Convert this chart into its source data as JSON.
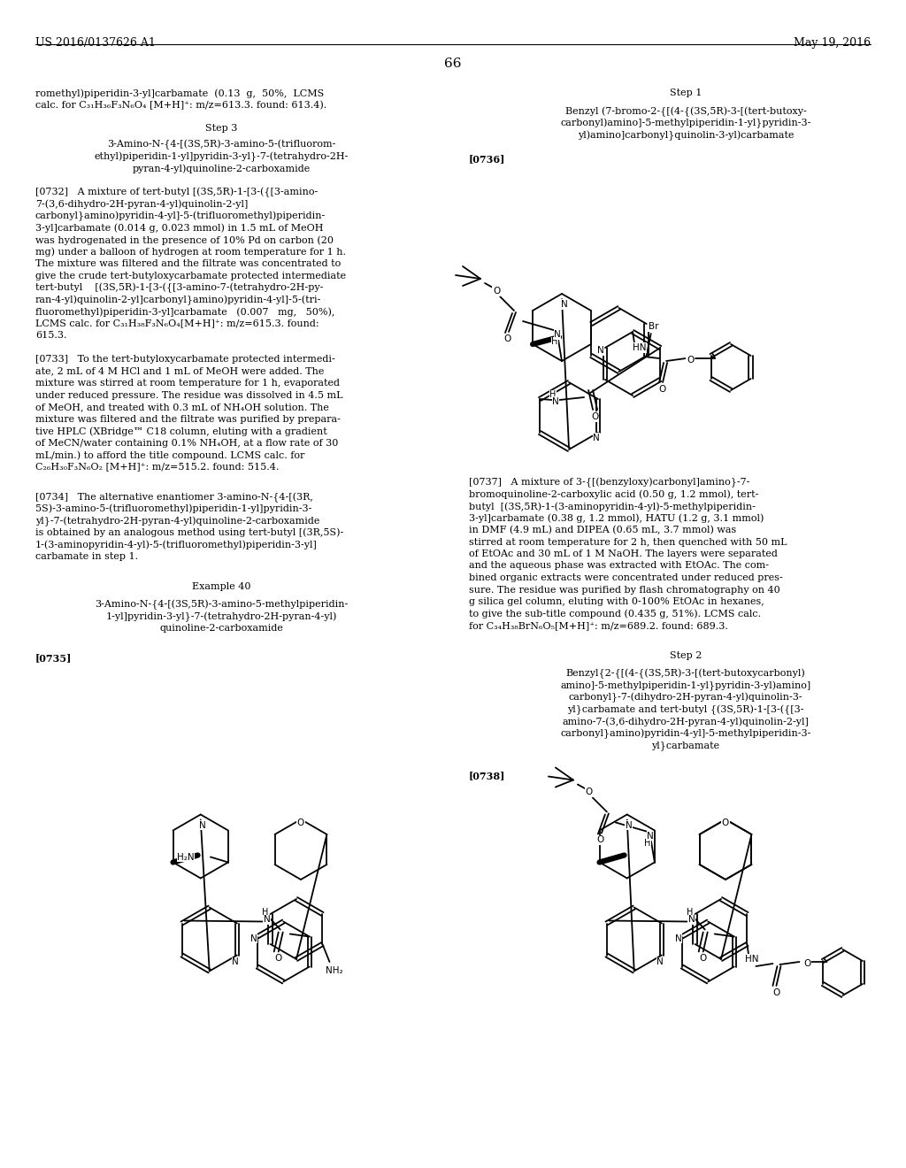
{
  "page_number": "66",
  "header_left": "US 2016/0137626 A1",
  "header_right": "May 19, 2016",
  "bg": "#ffffff",
  "body_fs": 8.0,
  "header_fs": 9.0
}
